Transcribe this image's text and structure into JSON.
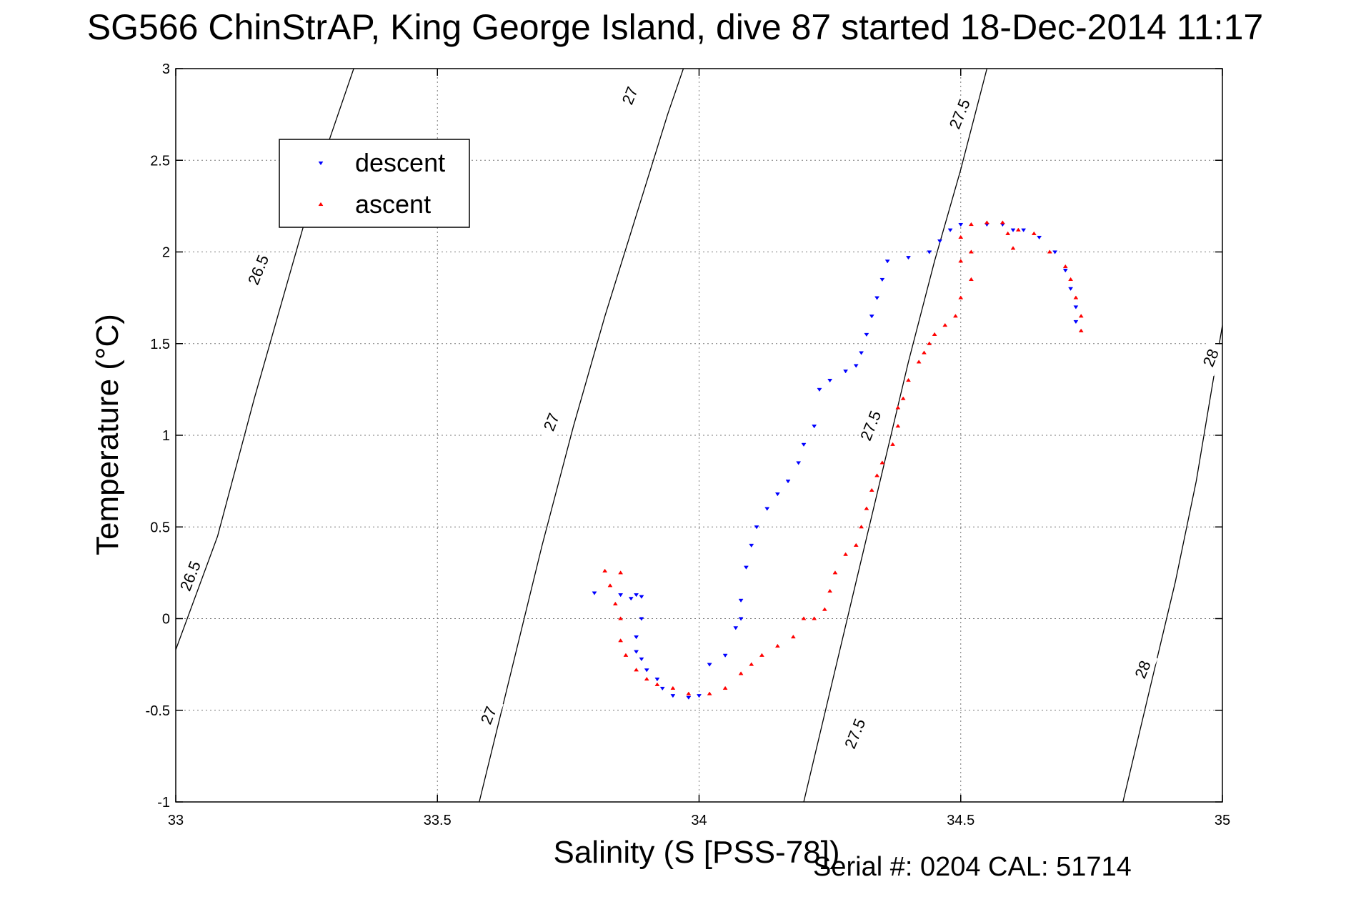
{
  "chart_data": {
    "type": "scatter",
    "title": "SG566 ChinStrAP, King George Island, dive 87 started 18-Dec-2014 11:17",
    "xlabel": "Salinity (S [PSS-78])",
    "ylabel": "Temperature (°C)",
    "xlim": [
      33,
      35
    ],
    "ylim": [
      -1,
      3
    ],
    "xticks": [
      "33",
      "33.5",
      "34",
      "34.5",
      "35"
    ],
    "yticks": [
      "-1",
      "-0.5",
      "0",
      "0.5",
      "1",
      "1.5",
      "2",
      "2.5",
      "3"
    ],
    "grid": true,
    "legend_position": "top-left",
    "series": [
      {
        "name": "descent",
        "color": "#0000ff",
        "marker": "triangle-down",
        "points": [
          [
            33.8,
            0.14
          ],
          [
            33.85,
            0.13
          ],
          [
            33.87,
            0.11
          ],
          [
            33.88,
            0.13
          ],
          [
            33.89,
            0.12
          ],
          [
            33.89,
            0.0
          ],
          [
            33.88,
            -0.1
          ],
          [
            33.88,
            -0.18
          ],
          [
            33.89,
            -0.22
          ],
          [
            33.9,
            -0.28
          ],
          [
            33.92,
            -0.33
          ],
          [
            33.93,
            -0.38
          ],
          [
            33.95,
            -0.42
          ],
          [
            33.98,
            -0.43
          ],
          [
            34.0,
            -0.42
          ],
          [
            34.02,
            -0.25
          ],
          [
            34.05,
            -0.2
          ],
          [
            34.07,
            -0.05
          ],
          [
            34.08,
            0.0
          ],
          [
            34.08,
            0.1
          ],
          [
            34.09,
            0.28
          ],
          [
            34.1,
            0.4
          ],
          [
            34.11,
            0.5
          ],
          [
            34.13,
            0.6
          ],
          [
            34.15,
            0.68
          ],
          [
            34.17,
            0.75
          ],
          [
            34.19,
            0.85
          ],
          [
            34.2,
            0.95
          ],
          [
            34.22,
            1.05
          ],
          [
            34.23,
            1.25
          ],
          [
            34.25,
            1.3
          ],
          [
            34.28,
            1.35
          ],
          [
            34.3,
            1.38
          ],
          [
            34.31,
            1.45
          ],
          [
            34.32,
            1.55
          ],
          [
            34.33,
            1.65
          ],
          [
            34.34,
            1.75
          ],
          [
            34.35,
            1.85
          ],
          [
            34.36,
            1.95
          ],
          [
            34.4,
            1.97
          ],
          [
            34.44,
            2.0
          ],
          [
            34.46,
            2.06
          ],
          [
            34.48,
            2.12
          ],
          [
            34.5,
            2.15
          ],
          [
            34.55,
            2.15
          ],
          [
            34.58,
            2.15
          ],
          [
            34.6,
            2.12
          ],
          [
            34.62,
            2.12
          ],
          [
            34.65,
            2.08
          ],
          [
            34.68,
            2.0
          ],
          [
            34.7,
            1.9
          ],
          [
            34.71,
            1.8
          ],
          [
            34.72,
            1.7
          ],
          [
            34.72,
            1.62
          ]
        ]
      },
      {
        "name": "ascent",
        "color": "#ff0000",
        "marker": "triangle-up",
        "points": [
          [
            34.73,
            1.57
          ],
          [
            34.73,
            1.65
          ],
          [
            34.72,
            1.75
          ],
          [
            34.71,
            1.85
          ],
          [
            34.7,
            1.92
          ],
          [
            34.67,
            2.0
          ],
          [
            34.64,
            2.1
          ],
          [
            34.61,
            2.12
          ],
          [
            34.6,
            2.02
          ],
          [
            34.59,
            2.1
          ],
          [
            34.58,
            2.16
          ],
          [
            34.55,
            2.16
          ],
          [
            34.52,
            2.15
          ],
          [
            34.5,
            2.08
          ],
          [
            34.52,
            2.0
          ],
          [
            34.5,
            1.95
          ],
          [
            34.52,
            1.85
          ],
          [
            34.5,
            1.75
          ],
          [
            34.49,
            1.65
          ],
          [
            34.47,
            1.6
          ],
          [
            34.45,
            1.55
          ],
          [
            34.44,
            1.5
          ],
          [
            34.43,
            1.45
          ],
          [
            34.42,
            1.4
          ],
          [
            34.4,
            1.3
          ],
          [
            34.39,
            1.2
          ],
          [
            34.38,
            1.15
          ],
          [
            34.38,
            1.05
          ],
          [
            34.37,
            0.95
          ],
          [
            34.35,
            0.85
          ],
          [
            34.34,
            0.78
          ],
          [
            34.33,
            0.7
          ],
          [
            34.32,
            0.6
          ],
          [
            34.31,
            0.5
          ],
          [
            34.3,
            0.4
          ],
          [
            34.28,
            0.35
          ],
          [
            34.26,
            0.25
          ],
          [
            34.25,
            0.15
          ],
          [
            34.24,
            0.05
          ],
          [
            34.22,
            0.0
          ],
          [
            34.2,
            0.0
          ],
          [
            34.18,
            -0.1
          ],
          [
            34.15,
            -0.15
          ],
          [
            34.12,
            -0.2
          ],
          [
            34.1,
            -0.25
          ],
          [
            34.08,
            -0.3
          ],
          [
            34.05,
            -0.38
          ],
          [
            34.02,
            -0.41
          ],
          [
            33.98,
            -0.41
          ],
          [
            33.95,
            -0.38
          ],
          [
            33.92,
            -0.36
          ],
          [
            33.9,
            -0.33
          ],
          [
            33.88,
            -0.28
          ],
          [
            33.86,
            -0.2
          ],
          [
            33.85,
            -0.12
          ],
          [
            33.85,
            0.0
          ],
          [
            33.84,
            0.08
          ],
          [
            33.83,
            0.18
          ],
          [
            33.82,
            0.26
          ],
          [
            33.85,
            0.25
          ]
        ]
      }
    ],
    "contours": [
      {
        "label": "26.5",
        "points": [
          [
            33.0,
            -0.17
          ],
          [
            33.08,
            0.45
          ],
          [
            33.15,
            1.2
          ],
          [
            33.22,
            1.9
          ],
          [
            33.28,
            2.5
          ],
          [
            33.34,
            3.0
          ]
        ],
        "label_positions": [
          [
            33.03,
            0.23
          ],
          [
            33.16,
            1.9
          ]
        ]
      },
      {
        "label": "27",
        "points": [
          [
            33.58,
            -1.0
          ],
          [
            33.64,
            -0.3
          ],
          [
            33.7,
            0.4
          ],
          [
            33.76,
            1.05
          ],
          [
            33.82,
            1.65
          ],
          [
            33.88,
            2.2
          ],
          [
            33.94,
            2.75
          ],
          [
            33.97,
            3.0
          ]
        ],
        "label_positions": [
          [
            33.6,
            -0.53
          ],
          [
            33.72,
            1.07
          ],
          [
            33.87,
            2.85
          ]
        ]
      },
      {
        "label": "27.5",
        "points": [
          [
            34.2,
            -1.0
          ],
          [
            34.25,
            -0.4
          ],
          [
            34.3,
            0.2
          ],
          [
            34.35,
            0.8
          ],
          [
            34.4,
            1.4
          ],
          [
            34.45,
            1.95
          ],
          [
            34.5,
            2.45
          ],
          [
            34.55,
            3.0
          ]
        ],
        "label_positions": [
          [
            34.3,
            -0.63
          ],
          [
            34.33,
            1.05
          ],
          [
            34.5,
            2.75
          ]
        ]
      },
      {
        "label": "28",
        "points": [
          [
            34.81,
            -1.0
          ],
          [
            34.86,
            -0.4
          ],
          [
            34.91,
            0.2
          ],
          [
            34.95,
            0.75
          ],
          [
            35.0,
            1.6
          ]
        ],
        "label_positions": [
          [
            34.85,
            -0.28
          ],
          [
            34.98,
            1.42
          ]
        ]
      }
    ]
  },
  "footer": {
    "serial_text": "Serial #: 0204  CAL: 51714"
  }
}
